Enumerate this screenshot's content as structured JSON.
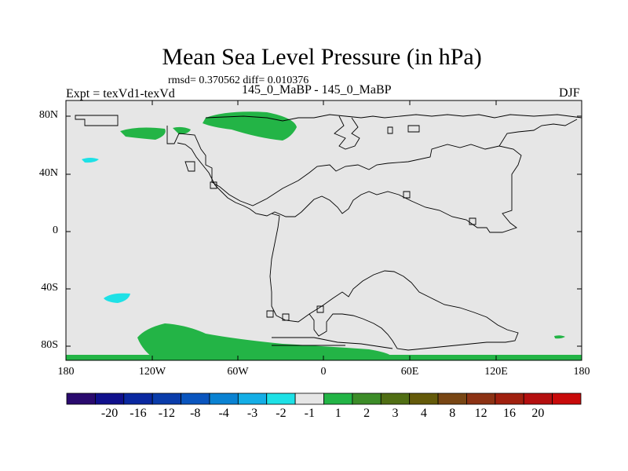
{
  "title": "Mean Sea Level Pressure (in hPa)",
  "stats": "rmsd= 0.370562 diff= 0.010376",
  "left_label": "Expt = texVd1-texVd",
  "center_label": "145_0_MaBP - 145_0_MaBP",
  "right_label": "DJF",
  "lat_ticks": [
    "80N",
    "40N",
    "0",
    "40S",
    "80S"
  ],
  "lon_ticks": [
    "180",
    "120W",
    "60W",
    "0",
    "60E",
    "120E",
    "180"
  ],
  "colorbar": {
    "colors": [
      "#2a0a6e",
      "#10108c",
      "#0a28a0",
      "#0a3caa",
      "#0a55be",
      "#0a82d2",
      "#14aee6",
      "#1ee1e6",
      "#e6e6e6",
      "#23b446",
      "#3c8c28",
      "#506e14",
      "#645a0a",
      "#784614",
      "#8c3214",
      "#a0200f",
      "#b40f0f",
      "#c80a0a"
    ],
    "labels": [
      "-20",
      "-16",
      "-12",
      "-8",
      "-4",
      "-3",
      "-2",
      "-1",
      "1",
      "2",
      "3",
      "4",
      "8",
      "12",
      "16",
      "20"
    ]
  },
  "map": {
    "background_color": "#e6e6e6",
    "positive_color": "#23b446",
    "negative_color": "#1ee1e6"
  }
}
